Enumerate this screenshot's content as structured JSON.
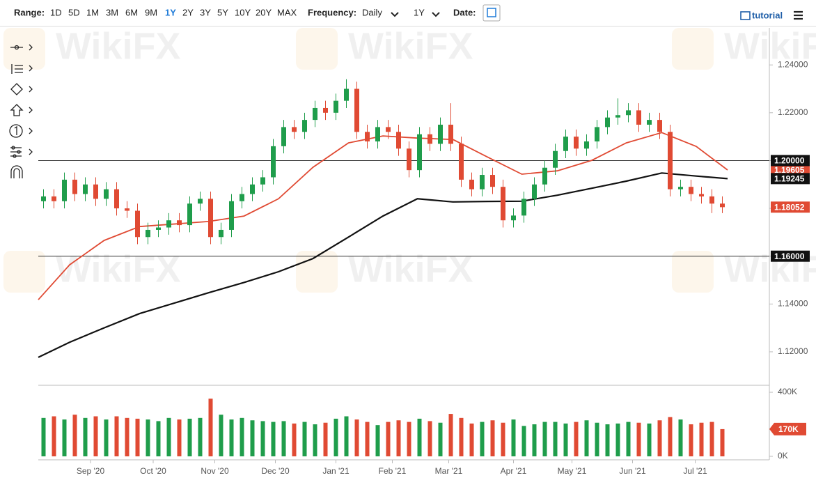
{
  "toolbar": {
    "range_label": "Range:",
    "ranges": [
      "1D",
      "5D",
      "1M",
      "3M",
      "6M",
      "9M",
      "1Y",
      "2Y",
      "3Y",
      "5Y",
      "10Y",
      "20Y",
      "MAX"
    ],
    "active_range": "1Y",
    "frequency_label": "Frequency:",
    "frequency": "Daily",
    "period": "1Y",
    "date_label": "Date:",
    "tutorial": "tutorial"
  },
  "watermark": "WikiFX",
  "chart_data": [
    {
      "type": "candlestick",
      "x": [
        0,
        1,
        2,
        3,
        4,
        5,
        6,
        7,
        8,
        9,
        10,
        11,
        12,
        13,
        14,
        15,
        16,
        17,
        18,
        19,
        20,
        21,
        22,
        23,
        24,
        25,
        26,
        27,
        28,
        29,
        30,
        31,
        32,
        33,
        34,
        35,
        36,
        37,
        38,
        39,
        40,
        41,
        42,
        43,
        44,
        45,
        46,
        47,
        48,
        49,
        50,
        51,
        52,
        53,
        54,
        55,
        56,
        57,
        58,
        59,
        60,
        61,
        62,
        63,
        64,
        65
      ],
      "open": [
        1.183,
        1.185,
        1.183,
        1.192,
        1.186,
        1.19,
        1.184,
        1.188,
        1.18,
        1.179,
        1.168,
        1.171,
        1.172,
        1.175,
        1.173,
        1.182,
        1.184,
        1.168,
        1.171,
        1.183,
        1.186,
        1.19,
        1.193,
        1.206,
        1.214,
        1.212,
        1.217,
        1.222,
        1.22,
        1.225,
        1.23,
        1.212,
        1.208,
        1.214,
        1.212,
        1.205,
        1.196,
        1.211,
        1.207,
        1.215,
        1.207,
        1.192,
        1.188,
        1.194,
        1.189,
        1.175,
        1.177,
        1.184,
        1.19,
        1.197,
        1.204,
        1.21,
        1.205,
        1.208,
        1.214,
        1.218,
        1.219,
        1.221,
        1.215,
        1.217,
        1.212,
        1.188,
        1.189,
        1.186,
        1.185,
        1.182
      ],
      "high": [
        1.188,
        1.188,
        1.195,
        1.195,
        1.193,
        1.193,
        1.191,
        1.191,
        1.183,
        1.182,
        1.174,
        1.175,
        1.178,
        1.178,
        1.185,
        1.187,
        1.187,
        1.174,
        1.186,
        1.189,
        1.193,
        1.196,
        1.209,
        1.217,
        1.217,
        1.22,
        1.225,
        1.225,
        1.228,
        1.234,
        1.233,
        1.215,
        1.217,
        1.217,
        1.215,
        1.208,
        1.214,
        1.214,
        1.218,
        1.224,
        1.21,
        1.195,
        1.197,
        1.197,
        1.192,
        1.18,
        1.187,
        1.193,
        1.2,
        1.207,
        1.213,
        1.213,
        1.211,
        1.217,
        1.221,
        1.226,
        1.224,
        1.224,
        1.22,
        1.22,
        1.215,
        1.192,
        1.192,
        1.189,
        1.188,
        1.185
      ],
      "low": [
        1.18,
        1.18,
        1.18,
        1.183,
        1.183,
        1.181,
        1.181,
        1.177,
        1.176,
        1.165,
        1.165,
        1.168,
        1.169,
        1.17,
        1.17,
        1.179,
        1.165,
        1.165,
        1.168,
        1.18,
        1.183,
        1.187,
        1.19,
        1.203,
        1.209,
        1.209,
        1.214,
        1.217,
        1.217,
        1.222,
        1.209,
        1.205,
        1.205,
        1.209,
        1.202,
        1.193,
        1.193,
        1.204,
        1.204,
        1.204,
        1.189,
        1.185,
        1.185,
        1.186,
        1.172,
        1.172,
        1.174,
        1.181,
        1.187,
        1.194,
        1.201,
        1.202,
        1.202,
        1.205,
        1.211,
        1.215,
        1.216,
        1.212,
        1.212,
        1.209,
        1.185,
        1.185,
        1.183,
        1.182,
        1.178,
        1.178
      ],
      "close": [
        1.185,
        1.183,
        1.192,
        1.186,
        1.19,
        1.184,
        1.188,
        1.18,
        1.179,
        1.168,
        1.171,
        1.172,
        1.175,
        1.173,
        1.182,
        1.184,
        1.168,
        1.171,
        1.183,
        1.186,
        1.19,
        1.193,
        1.206,
        1.214,
        1.212,
        1.217,
        1.222,
        1.22,
        1.225,
        1.23,
        1.212,
        1.208,
        1.214,
        1.212,
        1.205,
        1.196,
        1.211,
        1.207,
        1.215,
        1.207,
        1.192,
        1.188,
        1.194,
        1.189,
        1.175,
        1.177,
        1.184,
        1.19,
        1.197,
        1.204,
        1.21,
        1.205,
        1.208,
        1.214,
        1.218,
        1.219,
        1.221,
        1.215,
        1.217,
        1.212,
        1.188,
        1.189,
        1.186,
        1.185,
        1.182,
        1.1805
      ],
      "up_color": "#1f9d4b",
      "down_color": "#e04a33",
      "lines": [
        {
          "color": "#e04a33",
          "x": [
            -0.5,
            2.5,
            5.8,
            9.2,
            15.8,
            19.2,
            22.5,
            25.8,
            29.2,
            32.5,
            35.8,
            39.2,
            42.5,
            45.8,
            49.2,
            52.5,
            55.8,
            59.2,
            62.5,
            65.5
          ],
          "values": [
            1.1418,
            1.1564,
            1.1666,
            1.1724,
            1.1745,
            1.1768,
            1.184,
            1.1972,
            1.2074,
            1.2103,
            1.2094,
            1.2088,
            1.2015,
            1.1943,
            1.1957,
            1.2001,
            1.2074,
            1.2117,
            1.2059,
            1.19605
          ]
        },
        {
          "color": "#111111",
          "x": [
            -0.5,
            2.5,
            5.8,
            9.2,
            15.8,
            19.2,
            22.5,
            25.8,
            29.2,
            32.5,
            35.8,
            39.2,
            42.5,
            45.8,
            49.2,
            52.5,
            55.8,
            59.2,
            62.5,
            65.5
          ],
          "values": [
            1.1177,
            1.124,
            1.13,
            1.136,
            1.1447,
            1.149,
            1.1535,
            1.159,
            1.168,
            1.1768,
            1.184,
            1.1827,
            1.1829,
            1.183,
            1.1855,
            1.1884,
            1.1914,
            1.1948,
            1.1935,
            1.19245
          ]
        }
      ],
      "hlines": [
        {
          "value": 1.2,
          "label": "1.20000"
        },
        {
          "value": 1.16,
          "label": "1.16000"
        }
      ],
      "price_labels": [
        {
          "value": 1.19605,
          "label": "1.19605",
          "color": "#e04a33"
        },
        {
          "value": 1.19245,
          "label": "1.19245",
          "color": "#111111"
        },
        {
          "value": 1.18052,
          "label": "1.18052",
          "color": "#e04a33"
        }
      ],
      "xlim": [
        -0.5,
        69.5
      ],
      "ylim": [
        1.106,
        1.2555
      ],
      "yticks": [
        {
          "value": 1.12,
          "label": "1.12000"
        },
        {
          "value": 1.14,
          "label": "1.14000"
        },
        {
          "value": 1.16,
          "label": "1.16000"
        },
        {
          "value": 1.18,
          "label": "1.18000"
        },
        {
          "value": 1.2,
          "label": "1.20000"
        },
        {
          "value": 1.22,
          "label": "1.22000"
        },
        {
          "value": 1.24,
          "label": "1.24000"
        }
      ],
      "xticks": [
        {
          "value": 4.5,
          "label": "Sep '20"
        },
        {
          "value": 10.5,
          "label": "Oct '20"
        },
        {
          "value": 16.4,
          "label": "Nov '20"
        },
        {
          "value": 22.2,
          "label": "Dec '20"
        },
        {
          "value": 28.0,
          "label": "Jan '21"
        },
        {
          "value": 33.4,
          "label": "Feb '21"
        },
        {
          "value": 38.8,
          "label": "Mar '21"
        },
        {
          "value": 45.0,
          "label": "Apr '21"
        },
        {
          "value": 50.6,
          "label": "May '21"
        },
        {
          "value": 56.4,
          "label": "Jun '21"
        },
        {
          "value": 62.4,
          "label": "Jul '21"
        }
      ]
    },
    {
      "type": "volume",
      "values": [
        240000,
        250000,
        230000,
        260000,
        240000,
        250000,
        230000,
        250000,
        240000,
        235000,
        230000,
        220000,
        240000,
        230000,
        235000,
        240000,
        360000,
        260000,
        230000,
        240000,
        225000,
        220000,
        215000,
        220000,
        205000,
        215000,
        200000,
        210000,
        235000,
        250000,
        230000,
        215000,
        195000,
        215000,
        225000,
        215000,
        235000,
        220000,
        210000,
        265000,
        240000,
        205000,
        215000,
        225000,
        210000,
        230000,
        190000,
        200000,
        215000,
        215000,
        205000,
        215000,
        225000,
        210000,
        200000,
        205000,
        215000,
        210000,
        205000,
        225000,
        245000,
        230000,
        200000,
        210000,
        215000,
        170000
      ],
      "ylim": [
        0,
        435000
      ],
      "yticks": [
        {
          "value": 0,
          "label": "0K"
        },
        {
          "value": 400000,
          "label": "400K"
        }
      ],
      "last_label": {
        "value": 170000,
        "label": "170K",
        "color": "#e04a33"
      }
    }
  ]
}
